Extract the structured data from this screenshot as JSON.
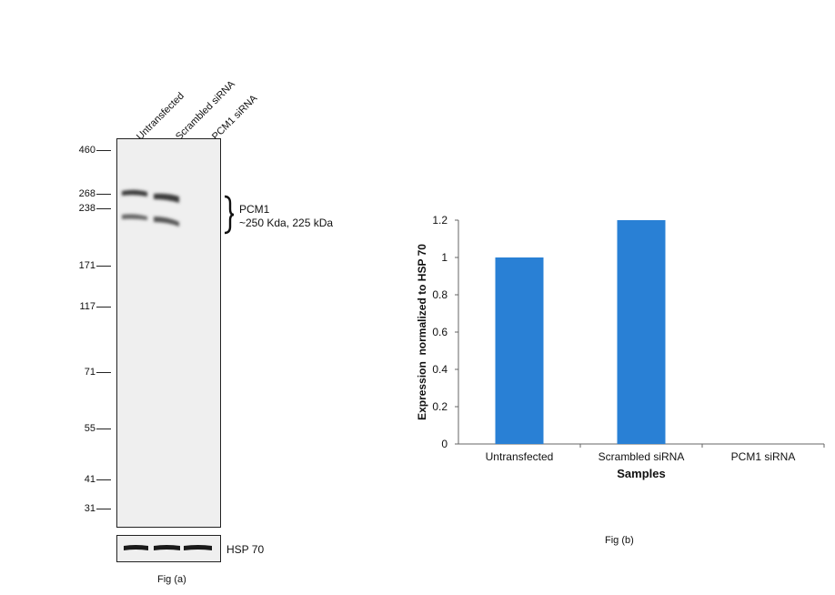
{
  "fig_a": {
    "lanes": [
      "Untransfected",
      "Scrambled siRNA",
      "PCM1 siRNA"
    ],
    "markers": [
      "460",
      "268",
      "238",
      "171",
      "117",
      "71",
      "55",
      "41",
      "31"
    ],
    "band_label": "PCM1",
    "band_size": "~250 Kda, 225 kDa",
    "loading_label": "HSP 70",
    "caption": "Fig (a)"
  },
  "fig_b": {
    "caption": "Fig (b)"
  },
  "chart_data": {
    "type": "bar",
    "categories": [
      "Untransfected",
      "Scrambled siRNA",
      "PCM1 siRNA"
    ],
    "values": [
      1.0,
      1.2,
      0.0
    ],
    "xlabel": "Samples",
    "ylabel": "Expression  normalized to HSP 70",
    "ylim": [
      0,
      1.2
    ],
    "yticks": [
      "0",
      "0.2",
      "0.4",
      "0.6",
      "0.8",
      "1",
      "1.2"
    ],
    "grid": false,
    "bar_color": "#2980d5"
  }
}
